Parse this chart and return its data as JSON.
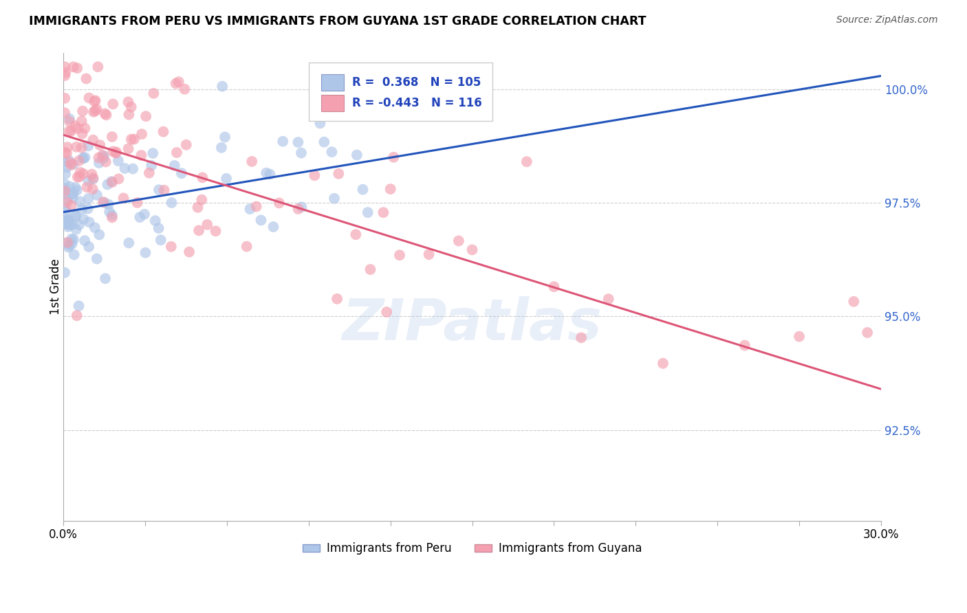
{
  "title": "IMMIGRANTS FROM PERU VS IMMIGRANTS FROM GUYANA 1ST GRADE CORRELATION CHART",
  "source": "Source: ZipAtlas.com",
  "ylabel": "1st Grade",
  "xmin": 0.0,
  "xmax": 30.0,
  "ymin": 90.5,
  "ymax": 100.8,
  "yticks": [
    92.5,
    95.0,
    97.5,
    100.0
  ],
  "xticks": [
    0.0,
    3.0,
    6.0,
    9.0,
    12.0,
    15.0,
    18.0,
    21.0,
    24.0,
    27.0,
    30.0
  ],
  "peru_color": "#aec6e8",
  "guyana_color": "#f4a0b0",
  "peru_line_color": "#2255bb",
  "guyana_line_color": "#dd5577",
  "R_peru": 0.368,
  "N_peru": 105,
  "R_guyana": -0.443,
  "N_guyana": 116,
  "legend_peru": "Immigrants from Peru",
  "legend_guyana": "Immigrants from Guyana",
  "watermark": "ZIPatlas",
  "peru_line_x0": 0.0,
  "peru_line_y0": 97.3,
  "peru_line_x1": 30.0,
  "peru_line_y1": 100.3,
  "guyana_line_x0": 0.0,
  "guyana_line_y0": 99.0,
  "guyana_line_x1": 30.0,
  "guyana_line_y1": 93.4
}
